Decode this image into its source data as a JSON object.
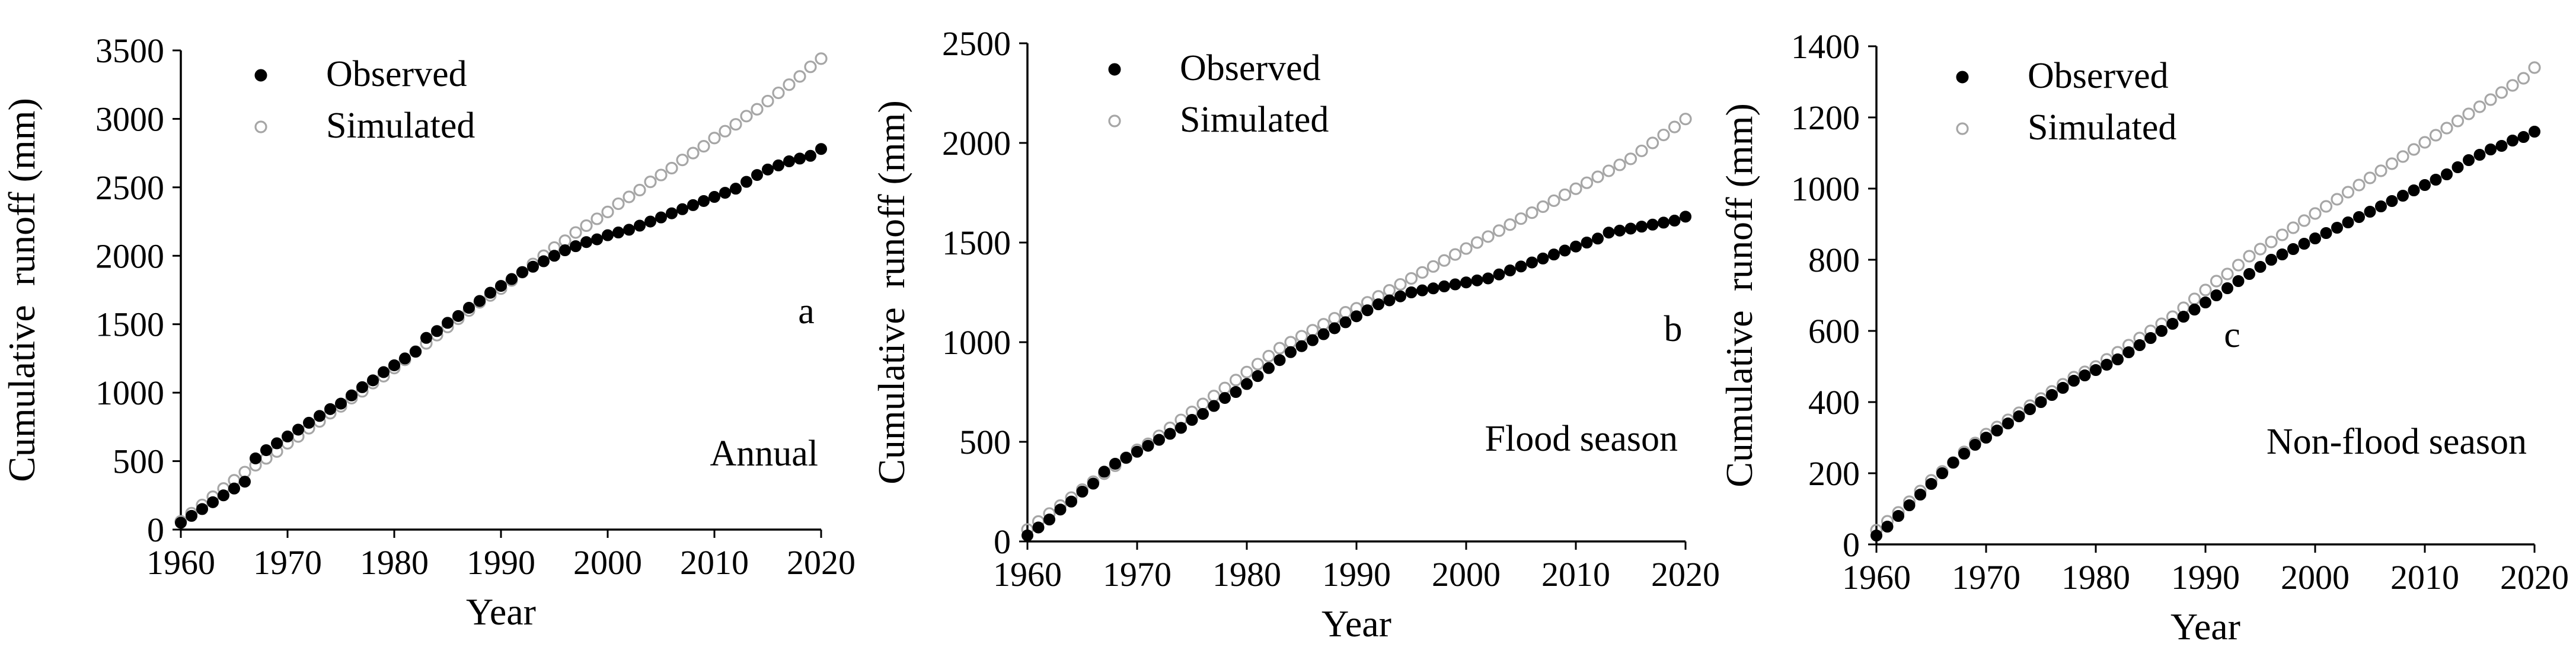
{
  "chart_data": [
    {
      "type": "scatter",
      "panel_label": "a",
      "season_label": "Annual",
      "xlabel": "Year",
      "ylabel": "Cumulative  runoff (mm)",
      "xlim": [
        1960,
        2020
      ],
      "ylim": [
        0,
        3500
      ],
      "xticks": [
        1960,
        1970,
        1980,
        1990,
        2000,
        2010,
        2020
      ],
      "yticks": [
        0,
        500,
        1000,
        1500,
        2000,
        2500,
        3000,
        3500
      ],
      "legend": [
        "Observed",
        "Simulated"
      ],
      "x_start": 1960,
      "series": [
        {
          "name": "Observed",
          "values": [
            50,
            100,
            150,
            200,
            250,
            300,
            350,
            520,
            580,
            630,
            680,
            730,
            780,
            830,
            880,
            920,
            980,
            1040,
            1090,
            1150,
            1200,
            1250,
            1300,
            1400,
            1450,
            1510,
            1560,
            1620,
            1670,
            1730,
            1780,
            1830,
            1880,
            1920,
            1960,
            2000,
            2040,
            2070,
            2100,
            2120,
            2150,
            2170,
            2190,
            2220,
            2250,
            2280,
            2310,
            2340,
            2370,
            2400,
            2430,
            2460,
            2490,
            2540,
            2590,
            2630,
            2660,
            2690,
            2710,
            2730,
            2780
          ]
        },
        {
          "name": "Simulated",
          "values": [
            60,
            120,
            180,
            240,
            300,
            360,
            420,
            470,
            520,
            570,
            630,
            680,
            740,
            790,
            850,
            900,
            960,
            1010,
            1070,
            1120,
            1180,
            1240,
            1300,
            1360,
            1420,
            1480,
            1540,
            1600,
            1660,
            1710,
            1760,
            1820,
            1880,
            1940,
            2000,
            2060,
            2110,
            2170,
            2220,
            2270,
            2320,
            2380,
            2430,
            2480,
            2540,
            2590,
            2640,
            2700,
            2750,
            2800,
            2860,
            2910,
            2960,
            3020,
            3070,
            3130,
            3190,
            3250,
            3310,
            3380,
            3440
          ]
        }
      ]
    },
    {
      "type": "scatter",
      "panel_label": "b",
      "season_label": "Flood season",
      "xlabel": "Year",
      "ylabel": "Cumulative  runoff (mm)",
      "xlim": [
        1960,
        2020
      ],
      "ylim": [
        0,
        2500
      ],
      "xticks": [
        1960,
        1970,
        1980,
        1990,
        2000,
        2010,
        2020
      ],
      "yticks": [
        0,
        500,
        1000,
        1500,
        2000,
        2500
      ],
      "legend": [
        "Observed",
        "Simulated"
      ],
      "x_start": 1960,
      "series": [
        {
          "name": "Observed",
          "values": [
            30,
            70,
            110,
            160,
            200,
            250,
            290,
            350,
            390,
            420,
            450,
            480,
            510,
            540,
            570,
            610,
            640,
            680,
            720,
            750,
            790,
            830,
            870,
            910,
            950,
            980,
            1010,
            1040,
            1070,
            1100,
            1130,
            1160,
            1190,
            1210,
            1230,
            1250,
            1260,
            1270,
            1280,
            1290,
            1300,
            1310,
            1320,
            1340,
            1360,
            1380,
            1400,
            1420,
            1440,
            1460,
            1480,
            1500,
            1520,
            1550,
            1560,
            1570,
            1580,
            1590,
            1600,
            1610,
            1630
          ]
        },
        {
          "name": "Simulated",
          "values": [
            60,
            100,
            140,
            180,
            220,
            260,
            300,
            340,
            380,
            420,
            460,
            490,
            530,
            570,
            610,
            650,
            690,
            730,
            770,
            810,
            850,
            890,
            930,
            970,
            1000,
            1030,
            1060,
            1090,
            1120,
            1150,
            1170,
            1200,
            1230,
            1260,
            1290,
            1320,
            1350,
            1380,
            1410,
            1440,
            1470,
            1500,
            1530,
            1560,
            1590,
            1620,
            1650,
            1680,
            1710,
            1740,
            1770,
            1800,
            1830,
            1860,
            1890,
            1920,
            1960,
            2000,
            2040,
            2080,
            2120
          ]
        }
      ]
    },
    {
      "type": "scatter",
      "panel_label": "c",
      "season_label": "Non-flood season",
      "xlabel": "Year",
      "ylabel": "Cumulative  runoff (mm)",
      "xlim": [
        1960,
        2020
      ],
      "ylim": [
        0,
        1400
      ],
      "xticks": [
        1960,
        1970,
        1980,
        1990,
        2000,
        2010,
        2020
      ],
      "yticks": [
        0,
        200,
        400,
        600,
        800,
        1000,
        1200,
        1400
      ],
      "legend": [
        "Observed",
        "Simulated"
      ],
      "x_start": 1960,
      "series": [
        {
          "name": "Observed",
          "values": [
            25,
            50,
            80,
            110,
            140,
            170,
            200,
            230,
            255,
            280,
            300,
            320,
            340,
            360,
            380,
            400,
            420,
            440,
            460,
            475,
            490,
            505,
            520,
            540,
            560,
            580,
            600,
            620,
            640,
            660,
            680,
            700,
            720,
            740,
            760,
            780,
            800,
            815,
            830,
            845,
            860,
            875,
            890,
            905,
            920,
            935,
            950,
            965,
            980,
            995,
            1010,
            1025,
            1040,
            1060,
            1080,
            1095,
            1110,
            1120,
            1135,
            1145,
            1160
          ]
        },
        {
          "name": "Simulated",
          "values": [
            40,
            65,
            90,
            120,
            150,
            180,
            205,
            230,
            260,
            285,
            310,
            330,
            350,
            370,
            390,
            410,
            430,
            450,
            470,
            485,
            500,
            520,
            540,
            560,
            580,
            600,
            620,
            640,
            665,
            690,
            715,
            740,
            760,
            785,
            810,
            830,
            850,
            870,
            890,
            910,
            930,
            950,
            970,
            990,
            1010,
            1030,
            1050,
            1070,
            1090,
            1110,
            1130,
            1150,
            1170,
            1190,
            1210,
            1230,
            1250,
            1270,
            1290,
            1310,
            1340
          ]
        }
      ]
    }
  ]
}
